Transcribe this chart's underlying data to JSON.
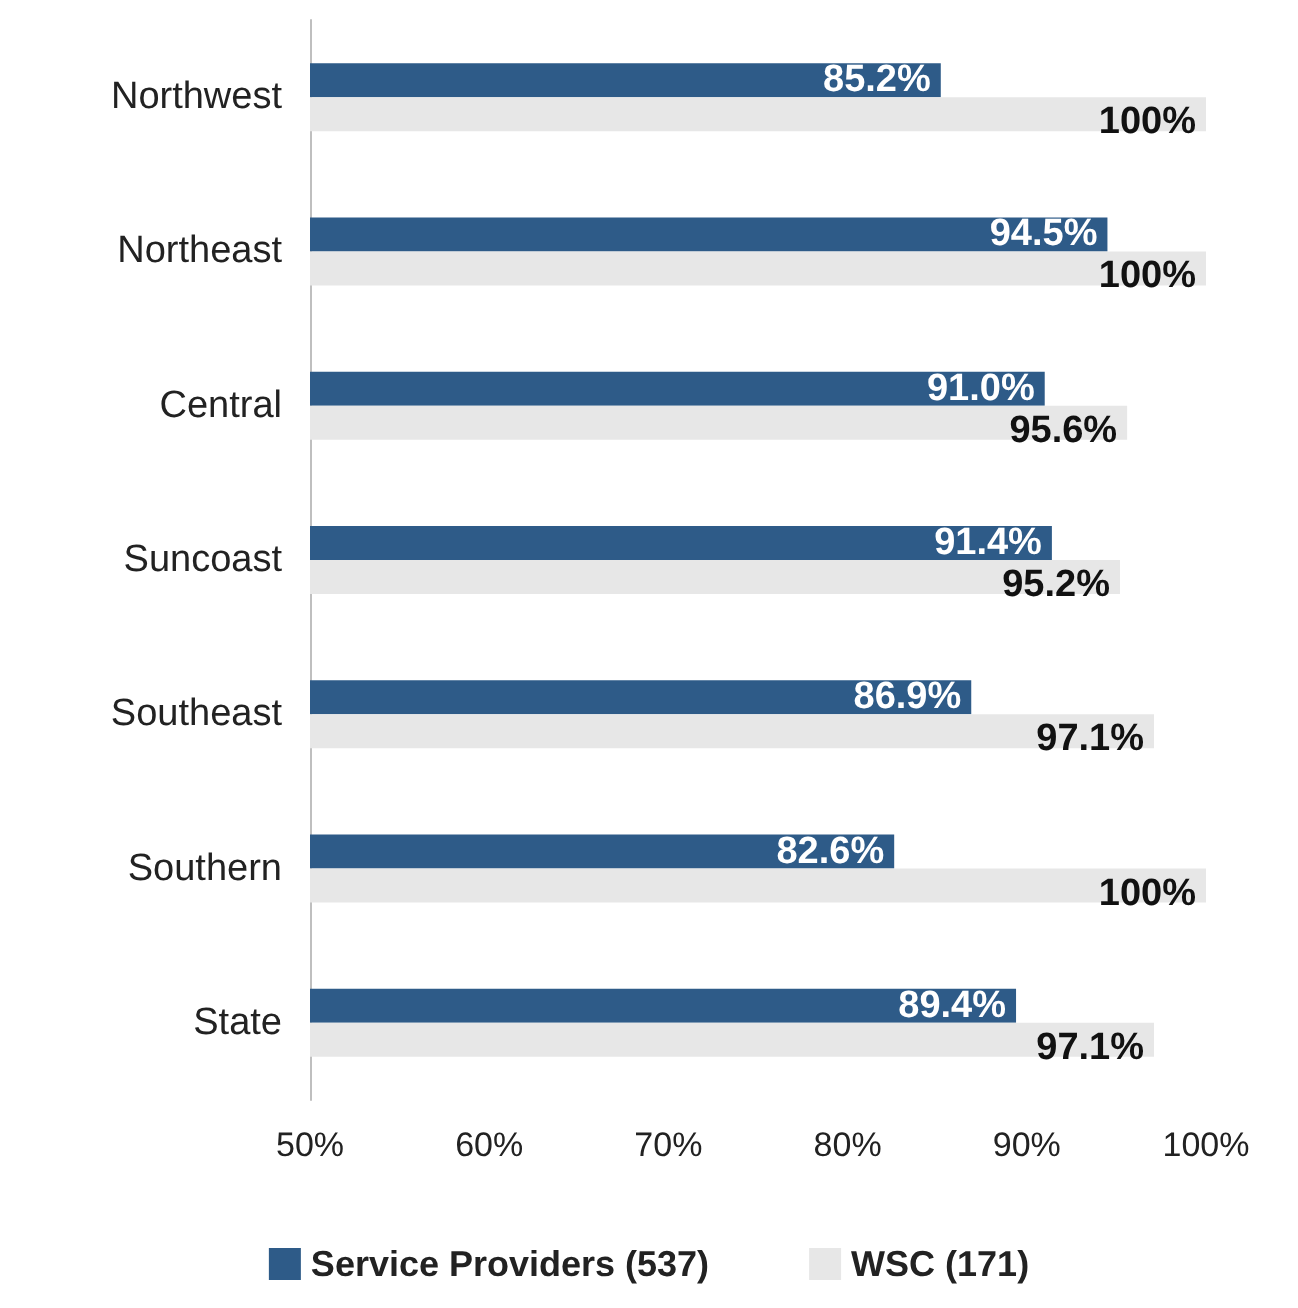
{
  "chart_data": {
    "type": "bar",
    "orientation": "horizontal",
    "categories": [
      "Northwest",
      "Northeast",
      "Central",
      "Suncoast",
      "Southeast",
      "Southern",
      "State"
    ],
    "series": [
      {
        "name": "Service Providers (537)",
        "color": "#2e5b88",
        "values": [
          85.2,
          94.5,
          91.0,
          91.4,
          86.9,
          82.6,
          89.4
        ],
        "value_labels": [
          "85.2%",
          "94.5%",
          "91.0%",
          "91.4%",
          "86.9%",
          "82.6%",
          "89.4%"
        ]
      },
      {
        "name": "WSC (171)",
        "color": "#e7e7e7",
        "values": [
          100,
          100,
          95.6,
          95.2,
          97.1,
          100,
          97.1
        ],
        "value_labels": [
          "100%",
          "100%",
          "95.6%",
          "95.2%",
          "97.1%",
          "100%",
          "97.1%"
        ]
      }
    ],
    "xlim": [
      50,
      100
    ],
    "xticks": [
      {
        "value": 50,
        "label": "50%"
      },
      {
        "value": 60,
        "label": "60%"
      },
      {
        "value": 70,
        "label": "70%"
      },
      {
        "value": 80,
        "label": "80%"
      },
      {
        "value": 90,
        "label": "90%"
      },
      {
        "value": 100,
        "label": "100%"
      }
    ],
    "grid": false,
    "legend": "bottom"
  }
}
